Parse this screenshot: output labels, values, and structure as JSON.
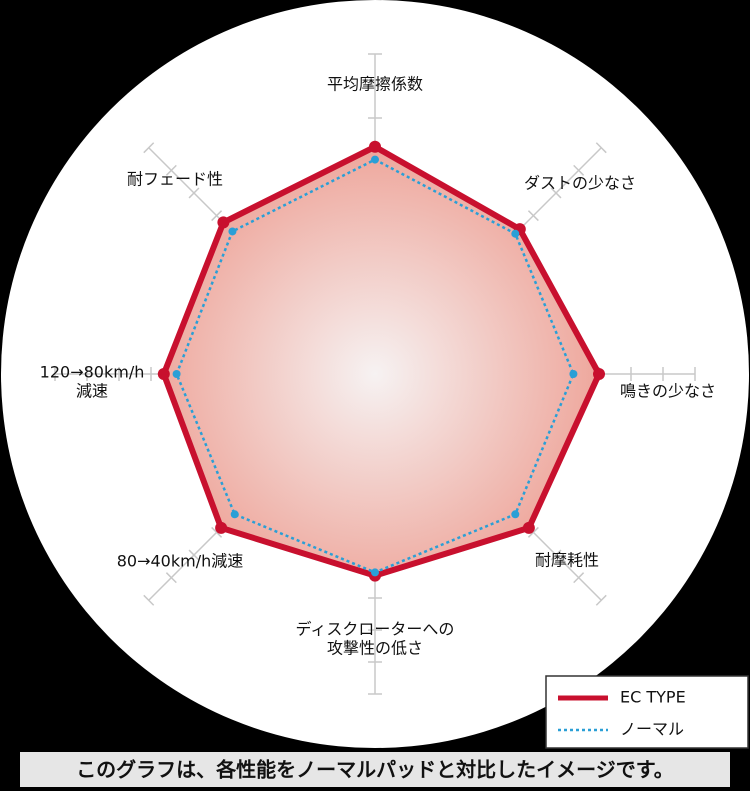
{
  "chart_data": {
    "type": "radar",
    "axes": [
      [
        "平均摩擦係数"
      ],
      [
        "ダストの少なさ"
      ],
      [
        "鳴きの少なさ"
      ],
      [
        "耐摩耗性"
      ],
      [
        "ディスクローターへの",
        "攻撃性の低さ"
      ],
      [
        "80→40km/h減速"
      ],
      [
        "120→80km/h",
        "減速"
      ],
      [
        "耐フェード性"
      ]
    ],
    "rlim": [
      0,
      100
    ],
    "rticks": [
      10,
      20,
      30,
      40,
      50,
      60,
      70,
      80,
      90,
      100
    ],
    "series": [
      {
        "name": "EC TYPE",
        "color": "#c8102e",
        "values": [
          71,
          64,
          70,
          68,
          63,
          68,
          66,
          67
        ]
      },
      {
        "name": "ノーマル",
        "color": "#2a9fd6",
        "values": [
          67,
          62,
          62,
          62,
          62,
          62,
          62,
          63
        ]
      }
    ],
    "note": "このグラフは、各性能をノーマルパッドと対比したイメージです。"
  }
}
